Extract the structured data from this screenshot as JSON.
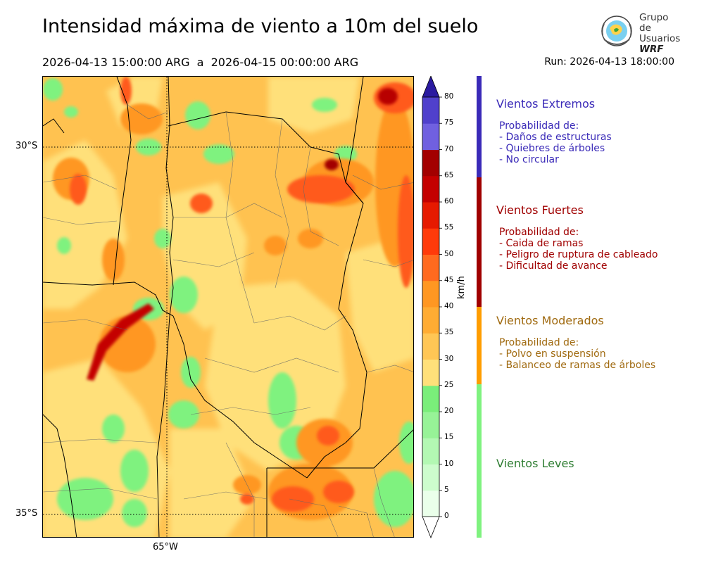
{
  "title": "Intensidad máxima de viento a 10m del suelo",
  "period": "2026-04-13 15:00:00 ARG  a  2026-04-15 00:00:00 ARG",
  "run": "Run: 2026-04-13 18:00:00",
  "logo": {
    "line1": "Grupo de",
    "line2": "Usuarios",
    "line3": "WRF",
    "icon": "globe-icon"
  },
  "map": {
    "lat_labels": [
      "30°S",
      "35°S"
    ],
    "lon_labels": [
      "65°W"
    ],
    "colors": {
      "light_green": "#7ff27f",
      "yellow": "#ffe07a",
      "orange": "#ffb84d",
      "red_orange": "#ff6a1f",
      "dark_red": "#b80000"
    }
  },
  "colorbar": {
    "unit": "km/h",
    "ticks": [
      "0",
      "5",
      "10",
      "15",
      "20",
      "25",
      "30",
      "35",
      "40",
      "45",
      "50",
      "55",
      "60",
      "65",
      "70",
      "75",
      "80"
    ],
    "colors": [
      "#eaffea",
      "#cdfccd",
      "#b3f8b3",
      "#97f397",
      "#7aee7a",
      "#ffe07a",
      "#ffc655",
      "#ffac33",
      "#ff9722",
      "#ff6a1f",
      "#ff3a0a",
      "#e61a00",
      "#c40000",
      "#a30000",
      "#7060e0",
      "#5040cc",
      "#3a2ab8",
      "#2a1aa0"
    ]
  },
  "categories": [
    {
      "title": "Vientos Extremos",
      "color": "#3a2ab8",
      "lines": [
        "Probabilidad de:",
        "- Daños de estructuras",
        "- Quiebres de árboles",
        "- No circular"
      ]
    },
    {
      "title": "Vientos Fuertes",
      "color": "#a00000",
      "lines": [
        "Probabilidad de:",
        "- Caida de ramas",
        "- Peligro de ruptura de cableado",
        "- Dificultad de avance"
      ]
    },
    {
      "title": "Vientos Moderados",
      "color": "#a06a10",
      "bar_color": "#ff9d00",
      "lines": [
        "Probabilidad de:",
        "- Polvo en suspensión",
        "- Balanceo de ramas de árboles"
      ]
    },
    {
      "title": "Vientos Leves",
      "color": "#2e7d32",
      "bar_color": "#7ff27f",
      "lines": []
    }
  ]
}
